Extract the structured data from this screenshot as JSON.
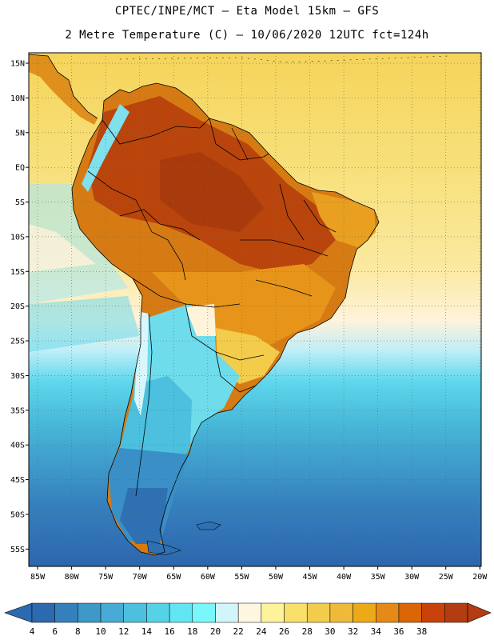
{
  "header": {
    "line1": "CPTEC/INPE/MCT –  Eta Model 15km – GFS",
    "line2": "2 Metre Temperature (C) – 10/06/2020 12UTC fct=124h"
  },
  "lat_labels": [
    "15N",
    "10N",
    "5N",
    "EQ",
    "5S",
    "10S",
    "15S",
    "20S",
    "25S",
    "30S",
    "35S",
    "40S",
    "45S",
    "50S",
    "55S"
  ],
  "lon_labels": [
    "85W",
    "80W",
    "75W",
    "70W",
    "65W",
    "60W",
    "55W",
    "50W",
    "45W",
    "40W",
    "35W",
    "30W",
    "25W",
    "20W"
  ],
  "colorbar": {
    "labels": [
      "4",
      "6",
      "8",
      "10",
      "12",
      "14",
      "16",
      "18",
      "20",
      "22",
      "24",
      "26",
      "28",
      "30",
      "32",
      "34",
      "36",
      "38"
    ],
    "colors": [
      "#2b6aae",
      "#3480bd",
      "#3e98c8",
      "#47abd5",
      "#4cc0de",
      "#56d2e8",
      "#62e6f4",
      "#7af7fb",
      "#d2f5fb",
      "#fff6e0",
      "#fdf39a",
      "#f9e06a",
      "#f3cc4c",
      "#efb93a",
      "#ebaa16",
      "#e58a16",
      "#db6606",
      "#c8420a",
      "#b33c12"
    ],
    "low_color": "#2b6aae",
    "high_color": "#b33c12"
  },
  "colors": {
    "ocean_north": "#f6d45a",
    "ocean_south": "#2e6aae",
    "coast_line": "#000000"
  }
}
